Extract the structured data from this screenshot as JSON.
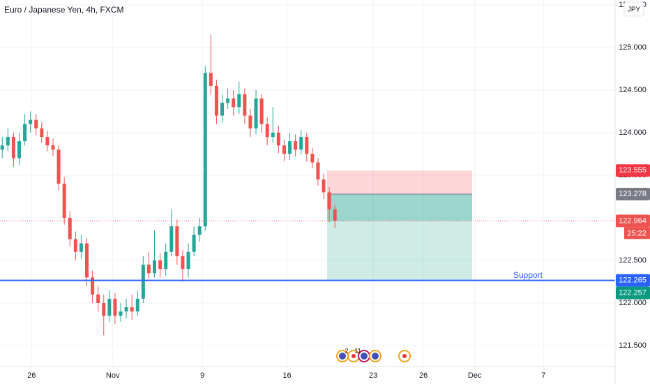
{
  "chart_data": {
    "type": "candlestick",
    "title": "Euro / Japanese Yen, 4h, FXCM",
    "currency": "JPY",
    "up_color": "#26a69a",
    "down_color": "#ef5350",
    "grid": true,
    "open": [
      123.8,
      123.85,
      123.95,
      123.7,
      123.9,
      124.1,
      124.15,
      124.05,
      123.95,
      123.85,
      123.8,
      123.4,
      123.0,
      122.75,
      122.6,
      122.7,
      122.3,
      122.1,
      122.0,
      121.85,
      122.05,
      121.85,
      121.9,
      121.95,
      121.9,
      122.05,
      122.45,
      122.35,
      122.5,
      122.4,
      122.6,
      122.9,
      122.55,
      122.4,
      122.6,
      122.8,
      122.9,
      124.7,
      124.55,
      124.2,
      124.35,
      124.4,
      124.3,
      124.45,
      124.2,
      124.05,
      124.4,
      124.1,
      123.95,
      124.0,
      123.85,
      123.75,
      123.9,
      123.8,
      123.95,
      123.75,
      123.65,
      123.45,
      123.3,
      123.1
    ],
    "high": [
      123.95,
      124.05,
      124.0,
      124.0,
      124.22,
      124.25,
      124.22,
      124.12,
      124.02,
      123.93,
      123.85,
      123.48,
      123.08,
      122.84,
      122.8,
      122.76,
      122.38,
      122.2,
      122.1,
      122.15,
      122.12,
      122.0,
      122.05,
      122.1,
      122.15,
      122.55,
      122.6,
      122.85,
      122.58,
      122.7,
      123.1,
      122.98,
      122.62,
      122.7,
      122.9,
      123.0,
      124.78,
      125.15,
      124.62,
      124.45,
      124.52,
      124.5,
      124.6,
      124.52,
      124.28,
      124.5,
      124.45,
      124.18,
      124.3,
      124.08,
      123.92,
      124.0,
      123.98,
      124.03,
      124.0,
      123.82,
      123.7,
      123.52,
      123.36,
      123.15
    ],
    "low": [
      123.7,
      123.78,
      123.6,
      123.62,
      123.85,
      124.0,
      123.97,
      123.88,
      123.78,
      123.72,
      123.32,
      122.92,
      122.66,
      122.5,
      122.52,
      122.2,
      122.0,
      121.9,
      121.62,
      121.78,
      121.75,
      121.78,
      121.82,
      121.8,
      121.85,
      122.0,
      122.28,
      122.3,
      122.3,
      122.32,
      122.55,
      122.45,
      122.25,
      122.3,
      122.55,
      122.72,
      122.85,
      124.45,
      124.1,
      124.12,
      124.28,
      124.2,
      124.22,
      124.1,
      123.95,
      123.98,
      124.0,
      123.85,
      123.88,
      123.76,
      123.66,
      123.68,
      123.72,
      123.74,
      123.66,
      123.58,
      123.38,
      123.22,
      122.95,
      122.88
    ],
    "close": [
      123.85,
      123.95,
      123.7,
      123.9,
      124.1,
      124.15,
      124.05,
      123.95,
      123.85,
      123.8,
      123.4,
      123.0,
      122.75,
      122.6,
      122.7,
      122.3,
      122.1,
      122.0,
      121.85,
      122.05,
      121.85,
      121.9,
      121.95,
      121.9,
      122.05,
      122.45,
      122.35,
      122.5,
      122.4,
      122.6,
      122.9,
      122.55,
      122.4,
      122.6,
      122.8,
      122.9,
      124.7,
      124.55,
      124.2,
      124.35,
      124.4,
      124.3,
      124.45,
      124.2,
      124.05,
      124.4,
      124.1,
      123.95,
      124.0,
      123.85,
      123.75,
      123.9,
      123.8,
      123.95,
      123.75,
      123.65,
      123.45,
      123.3,
      123.1,
      122.964
    ],
    "countdown": "25:22",
    "ylim": [
      121.254,
      125.557
    ],
    "yticks": [
      {
        "value": 121.5,
        "label": "121.500"
      },
      {
        "value": 122,
        "label": "122.000"
      },
      {
        "value": 122.5,
        "label": "122.500"
      },
      {
        "value": 123,
        "label": "123.000"
      },
      {
        "value": 123.5,
        "label": "123.500"
      },
      {
        "value": 124,
        "label": "124.000"
      },
      {
        "value": 124.5,
        "label": "124.500"
      },
      {
        "value": 125,
        "label": "125.000"
      },
      {
        "value": 125.5,
        "label": "125.500"
      }
    ],
    "xlim": [
      -0.4,
      108.7
    ],
    "xticks": [
      {
        "value": 5.2,
        "label": "26"
      },
      {
        "value": 19.6,
        "label": "Nov"
      },
      {
        "value": 35.5,
        "label": "9"
      },
      {
        "value": 50.5,
        "label": "16"
      },
      {
        "value": 65.8,
        "label": "23"
      },
      {
        "value": 74.7,
        "label": "26"
      },
      {
        "value": 83.8,
        "label": "Dec"
      },
      {
        "value": 96.0,
        "label": "7"
      }
    ],
    "position": {
      "stop": 123.555,
      "entry": 123.278,
      "target": 122.257
    },
    "support": {
      "label": "Support",
      "value": 122.265
    },
    "event_labels": [
      "2",
      "11"
    ]
  }
}
